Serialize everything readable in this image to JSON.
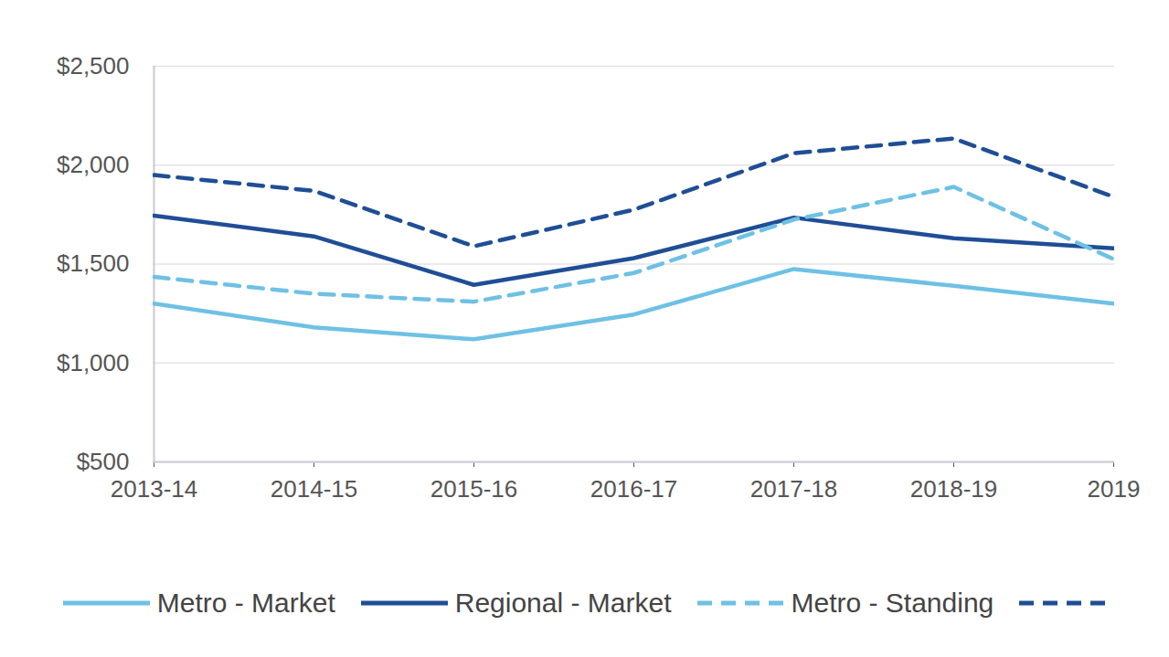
{
  "chart_data": {
    "type": "line",
    "categories": [
      "2013-14",
      "2014-15",
      "2015-16",
      "2016-17",
      "2017-18",
      "2018-19",
      "2019"
    ],
    "series": [
      {
        "name": "Metro - Market",
        "color": "#6ec1e4",
        "line_style": "solid",
        "values": [
          1300,
          1180,
          1120,
          1245,
          1475,
          1390,
          1300
        ]
      },
      {
        "name": "Regional - Market",
        "color": "#1f4e96",
        "line_style": "solid",
        "values": [
          1745,
          1640,
          1395,
          1530,
          1735,
          1630,
          1580
        ]
      },
      {
        "name": "Metro - Standing",
        "color": "#6ec1e4",
        "line_style": "dashed",
        "values": [
          1435,
          1350,
          1310,
          1455,
          1725,
          1890,
          1525
        ]
      },
      {
        "name": null,
        "color": "#1f4e96",
        "line_style": "dashed",
        "values": [
          1950,
          1870,
          1590,
          1775,
          2060,
          2135,
          1840
        ]
      }
    ],
    "ylim": [
      500,
      2500
    ],
    "yticks": [
      {
        "value": 500,
        "label": "$500"
      },
      {
        "value": 1000,
        "label": "$1,000"
      },
      {
        "value": 1500,
        "label": "$1,500"
      },
      {
        "value": 2000,
        "label": "$2,000"
      },
      {
        "value": 2500,
        "label": "$2,500"
      }
    ],
    "grid": true,
    "legend": "bottom"
  }
}
